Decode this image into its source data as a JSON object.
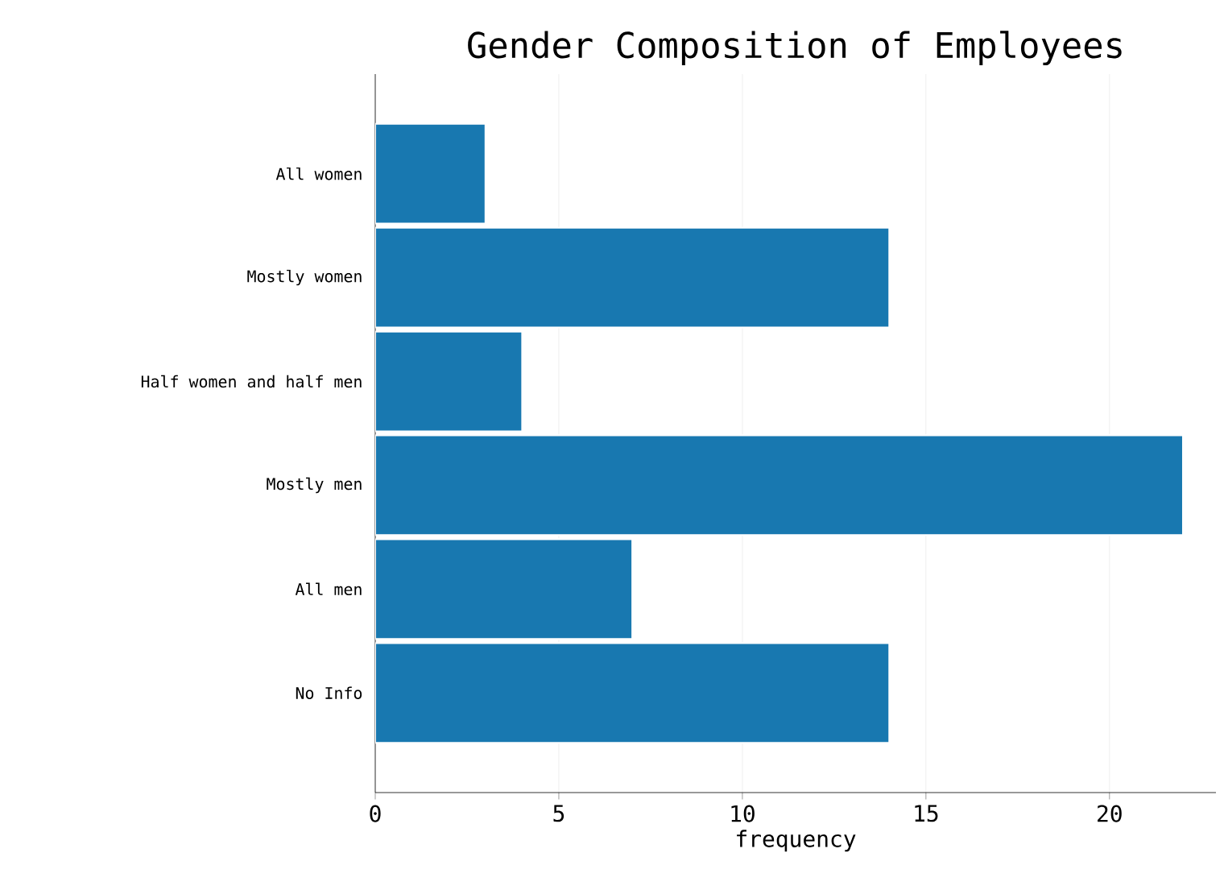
{
  "chart_data": {
    "type": "bar",
    "orientation": "horizontal",
    "title": "Gender Composition of Employees",
    "xlabel": "frequency",
    "categories": [
      "All women",
      "Mostly women",
      "Half women and half men",
      "Mostly men",
      "All men",
      "No Info"
    ],
    "values": [
      3,
      14,
      4,
      22,
      7,
      14
    ],
    "color": "#1878b0",
    "xlim": [
      0,
      22.9
    ],
    "xticks": [
      0,
      5,
      10,
      15,
      20
    ],
    "grid": "x"
  }
}
